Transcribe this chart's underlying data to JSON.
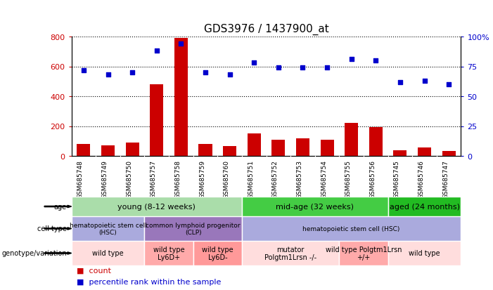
{
  "title": "GDS3976 / 1437900_at",
  "samples": [
    "GSM685748",
    "GSM685749",
    "GSM685750",
    "GSM685757",
    "GSM685758",
    "GSM685759",
    "GSM685760",
    "GSM685751",
    "GSM685752",
    "GSM685753",
    "GSM685754",
    "GSM685755",
    "GSM685756",
    "GSM685745",
    "GSM685746",
    "GSM685747"
  ],
  "counts": [
    80,
    70,
    90,
    480,
    790,
    80,
    65,
    150,
    110,
    120,
    110,
    220,
    195,
    40,
    55,
    35
  ],
  "percentiles": [
    72,
    68,
    70,
    88,
    94,
    70,
    68,
    78,
    74,
    74,
    74,
    81,
    80,
    62,
    63,
    60
  ],
  "bar_color": "#cc0000",
  "dot_color": "#0000cc",
  "ylim_left": [
    0,
    800
  ],
  "ylim_right": [
    0,
    100
  ],
  "yticks_left": [
    0,
    200,
    400,
    600,
    800
  ],
  "yticks_right": [
    0,
    25,
    50,
    75,
    100
  ],
  "yticklabels_right": [
    "0",
    "25",
    "50",
    "75",
    "100%"
  ],
  "xtick_bg": "#cccccc",
  "age_groups": [
    {
      "label": "young (8-12 weeks)",
      "start": 0,
      "end": 6,
      "color": "#aaddaa"
    },
    {
      "label": "mid-age (32 weeks)",
      "start": 7,
      "end": 12,
      "color": "#44cc44"
    },
    {
      "label": "aged (24 months)",
      "start": 13,
      "end": 15,
      "color": "#22bb22"
    }
  ],
  "cell_type_groups": [
    {
      "label": "hematopoietic stem cell\n(HSC)",
      "start": 0,
      "end": 2,
      "color": "#aaaadd"
    },
    {
      "label": "common lymphoid progenitor\n(CLP)",
      "start": 3,
      "end": 6,
      "color": "#9977bb"
    },
    {
      "label": "hematopoietic stem cell (HSC)",
      "start": 7,
      "end": 15,
      "color": "#aaaadd"
    }
  ],
  "genotype_groups": [
    {
      "label": "wild type",
      "start": 0,
      "end": 2,
      "color": "#ffdddd"
    },
    {
      "label": "wild type\nLy6D+",
      "start": 3,
      "end": 4,
      "color": "#ffaaaa"
    },
    {
      "label": "wild type\nLy6D-",
      "start": 5,
      "end": 6,
      "color": "#ff9999"
    },
    {
      "label": "mutator\nPolgtm1Lrsn -/-",
      "start": 7,
      "end": 10,
      "color": "#ffdddd"
    },
    {
      "label": "wild type Polgtm1Lrsn\n+/+",
      "start": 11,
      "end": 12,
      "color": "#ffaaaa"
    },
    {
      "label": "wild type",
      "start": 13,
      "end": 15,
      "color": "#ffdddd"
    }
  ],
  "row_labels": [
    "age",
    "cell type",
    "genotype/variation"
  ],
  "bg_color": "#ffffff",
  "left_tick_color": "#cc0000",
  "right_tick_color": "#0000cc"
}
